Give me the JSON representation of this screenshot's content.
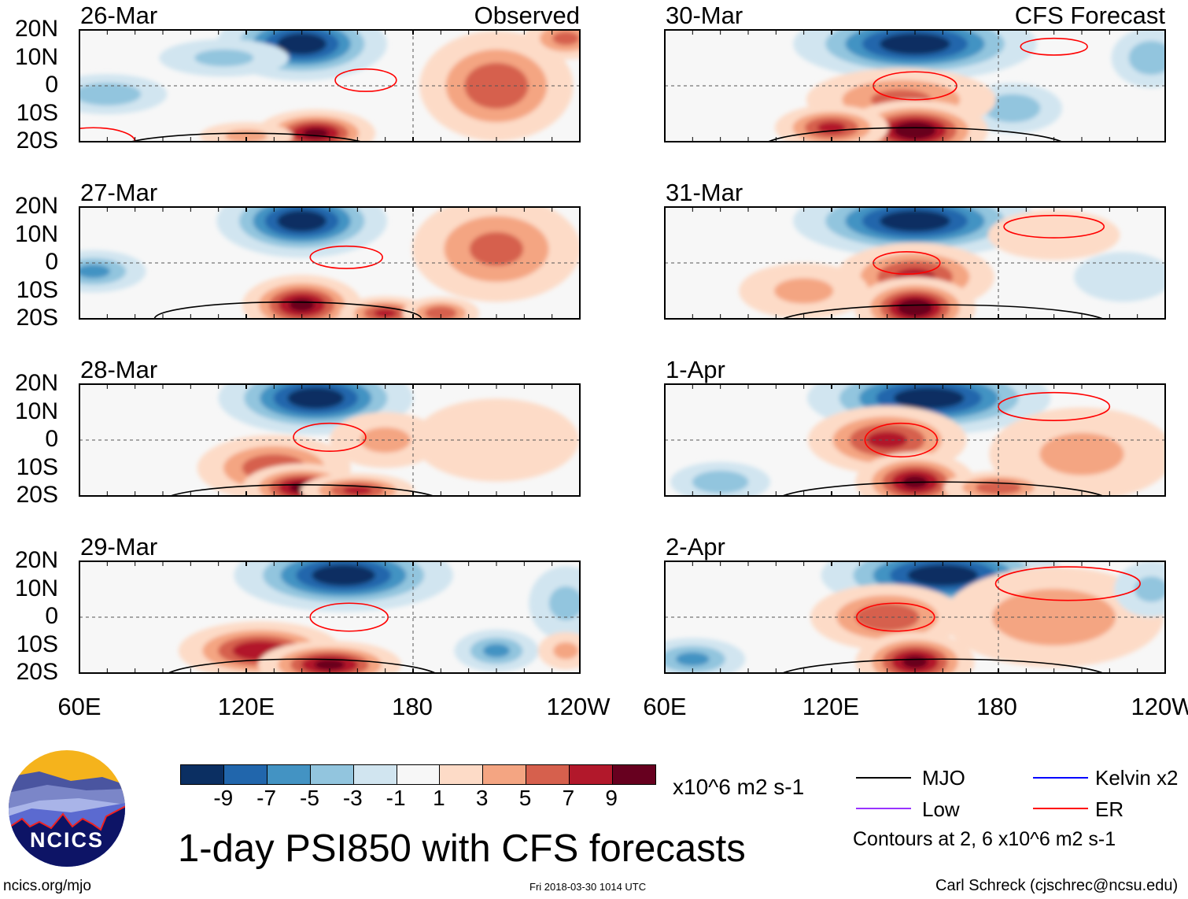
{
  "figure": {
    "title": "1-day PSI850 with CFS forecasts",
    "units": "x10^6 m2 s-1",
    "observed_label": "Observed",
    "forecast_label": "CFS Forecast",
    "website": "ncics.org/mjo",
    "timestamp": "Fri 2018-03-30 1014 UTC",
    "author": "Carl Schreck (cjschrec@ncsu.edu)",
    "logo_text": "NCICS",
    "contour_note": "Contours at 2, 6 x10^6 m2 s-1"
  },
  "axes": {
    "lat_labels": [
      "20N",
      "10N",
      "0",
      "10S",
      "20S"
    ],
    "lon_labels": [
      "60E",
      "120E",
      "180",
      "120W"
    ],
    "lon_range": [
      60,
      240
    ],
    "lat_range": [
      -20,
      20
    ]
  },
  "colorbar": {
    "colors": [
      "#0b2f62",
      "#2166ac",
      "#4393c3",
      "#92c5de",
      "#d1e5f0",
      "#f7f7f7",
      "#fddbc7",
      "#f4a582",
      "#d6604d",
      "#b2182b",
      "#67001f"
    ],
    "labels": [
      "-9",
      "-7",
      "-5",
      "-3",
      "-1",
      "1",
      "3",
      "5",
      "7",
      "9"
    ]
  },
  "legend": [
    {
      "label": "MJO",
      "color": "#000000"
    },
    {
      "label": "Kelvin x2",
      "color": "#0000ff"
    },
    {
      "label": "Low",
      "color": "#9933ff"
    },
    {
      "label": "ER",
      "color": "#ff0000"
    }
  ],
  "chart_data": {
    "type": "heatmap",
    "variable": "PSI850 anomaly",
    "panels": [
      {
        "date": "26-Mar",
        "column": "observed",
        "blobs": [
          [
            140,
            15,
            -11,
            14,
            6
          ],
          [
            70,
            -3,
            -5,
            12,
            4
          ],
          [
            112,
            10,
            -4,
            14,
            4
          ],
          [
            210,
            0,
            7,
            14,
            10
          ],
          [
            235,
            17,
            6,
            8,
            4
          ],
          [
            145,
            -17,
            10,
            10,
            4
          ],
          [
            120,
            -18,
            4,
            10,
            3
          ]
        ],
        "contours": [
          [
            "ER",
            163,
            2,
            11,
            4
          ],
          [
            "MJO",
            120,
            -22,
            45,
            5
          ],
          [
            "ER",
            65,
            -20,
            15,
            5
          ]
        ]
      },
      {
        "date": "27-Mar",
        "column": "observed",
        "blobs": [
          [
            140,
            15,
            -11,
            14,
            6
          ],
          [
            65,
            -3,
            -6,
            10,
            4
          ],
          [
            210,
            5,
            6,
            16,
            10
          ],
          [
            140,
            -15,
            10,
            10,
            5
          ],
          [
            170,
            -18,
            8,
            8,
            3
          ],
          [
            190,
            -18,
            7,
            7,
            3
          ]
        ],
        "contours": [
          [
            "ER",
            156,
            2,
            13,
            4
          ],
          [
            "MJO",
            135,
            -20,
            48,
            6
          ]
        ]
      },
      {
        "date": "28-Mar",
        "column": "observed",
        "blobs": [
          [
            145,
            15,
            -11,
            16,
            6
          ],
          [
            130,
            -10,
            7,
            14,
            6
          ],
          [
            140,
            -17,
            10,
            10,
            4
          ],
          [
            160,
            -18,
            8,
            10,
            3
          ],
          [
            170,
            0,
            4,
            12,
            6
          ],
          [
            210,
            0,
            3,
            20,
            10
          ]
        ],
        "contours": [
          [
            "ER",
            150,
            1,
            13,
            5
          ],
          [
            "MJO",
            140,
            -22,
            50,
            6
          ]
        ]
      },
      {
        "date": "29-Mar",
        "column": "observed",
        "blobs": [
          [
            155,
            15,
            -11,
            18,
            6
          ],
          [
            125,
            -12,
            9,
            14,
            5
          ],
          [
            150,
            -17,
            10,
            12,
            4
          ],
          [
            210,
            -12,
            -6,
            8,
            4
          ],
          [
            235,
            5,
            -4,
            8,
            8
          ],
          [
            235,
            -12,
            4,
            6,
            4
          ]
        ],
        "contours": [
          [
            "ER",
            157,
            0,
            14,
            5
          ],
          [
            "MJO",
            140,
            -22,
            50,
            7
          ]
        ]
      },
      {
        "date": "30-Mar",
        "column": "forecast",
        "blobs": [
          [
            150,
            15,
            -11,
            20,
            6
          ],
          [
            235,
            10,
            -5,
            8,
            6
          ],
          [
            185,
            -8,
            -5,
            10,
            5
          ],
          [
            145,
            -5,
            6,
            18,
            6
          ],
          [
            150,
            -16,
            11,
            12,
            5
          ],
          [
            120,
            -15,
            8,
            10,
            4
          ]
        ],
        "contours": [
          [
            "ER",
            150,
            0,
            15,
            5
          ],
          [
            "ER",
            200,
            14,
            12,
            3
          ],
          [
            "MJO",
            150,
            -22,
            55,
            7
          ]
        ]
      },
      {
        "date": "31-Mar",
        "column": "forecast",
        "blobs": [
          [
            150,
            15,
            -11,
            20,
            6
          ],
          [
            150,
            -5,
            8,
            14,
            6
          ],
          [
            150,
            -16,
            11,
            10,
            5
          ],
          [
            110,
            -10,
            4,
            14,
            6
          ],
          [
            225,
            -5,
            -3,
            12,
            6
          ],
          [
            200,
            10,
            3,
            16,
            6
          ]
        ],
        "contours": [
          [
            "ER",
            147,
            0,
            12,
            4
          ],
          [
            "ER",
            200,
            13,
            18,
            4
          ],
          [
            "MJO",
            160,
            -22,
            60,
            7
          ]
        ]
      },
      {
        "date": "1-Apr",
        "column": "forecast",
        "blobs": [
          [
            155,
            15,
            -11,
            20,
            6
          ],
          [
            140,
            0,
            8,
            14,
            6
          ],
          [
            150,
            -15,
            10,
            10,
            5
          ],
          [
            210,
            -5,
            4,
            20,
            10
          ],
          [
            80,
            -15,
            -5,
            10,
            4
          ],
          [
            180,
            -17,
            7,
            10,
            3
          ]
        ],
        "contours": [
          [
            "ER",
            145,
            0,
            13,
            6
          ],
          [
            "ER",
            200,
            12,
            20,
            5
          ],
          [
            "MJO",
            160,
            -22,
            60,
            7
          ]
        ]
      },
      {
        "date": "2-Apr",
        "column": "forecast",
        "blobs": [
          [
            160,
            15,
            -11,
            20,
            6
          ],
          [
            140,
            0,
            7,
            14,
            6
          ],
          [
            150,
            -16,
            10,
            10,
            5
          ],
          [
            70,
            -15,
            -6,
            10,
            4
          ],
          [
            200,
            0,
            5,
            22,
            10
          ],
          [
            235,
            10,
            -4,
            8,
            6
          ]
        ],
        "contours": [
          [
            "ER",
            143,
            0,
            14,
            5
          ],
          [
            "ER",
            205,
            12,
            26,
            6
          ],
          [
            "MJO",
            160,
            -22,
            60,
            7
          ]
        ]
      }
    ]
  }
}
